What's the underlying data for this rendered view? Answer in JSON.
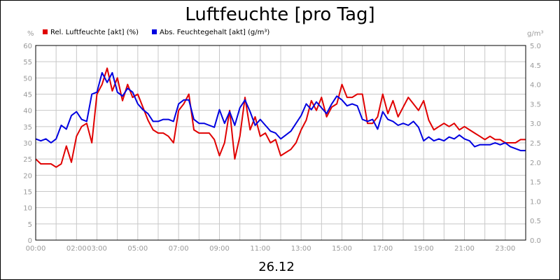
{
  "chart_data": {
    "type": "line",
    "title": "Luftfeuchte [pro Tag]",
    "date_label": "26.12",
    "y_left_unit": "%",
    "y_right_unit": "g/m³",
    "ylim_left": [
      0,
      60
    ],
    "ylim_right": [
      0,
      5
    ],
    "y_left_ticks": [
      "0",
      "5",
      "10",
      "15",
      "20",
      "25",
      "30",
      "35",
      "40",
      "45",
      "50",
      "55",
      "60"
    ],
    "y_right_ticks": [
      "0.0",
      "0.5",
      "1.0",
      "1.5",
      "2.0",
      "2.5",
      "3.0",
      "3.5",
      "4.0",
      "4.5",
      "5.0"
    ],
    "x_tick_labels": [
      {
        "hour": 0,
        "label": "00:00"
      },
      {
        "hour": 2,
        "label": "02:00"
      },
      {
        "hour": 3,
        "label": "03:00"
      },
      {
        "hour": 5,
        "label": "05:00"
      },
      {
        "hour": 7,
        "label": "07:00"
      },
      {
        "hour": 9,
        "label": "09:00"
      },
      {
        "hour": 11,
        "label": "11:00"
      },
      {
        "hour": 13,
        "label": "13:00"
      },
      {
        "hour": 15,
        "label": "15:00"
      },
      {
        "hour": 17,
        "label": "17:00"
      },
      {
        "hour": 19,
        "label": "19:00"
      },
      {
        "hour": 21,
        "label": "21:00"
      },
      {
        "hour": 23,
        "label": "23:00"
      }
    ],
    "grid": true,
    "legend_position": "top-left",
    "series": [
      {
        "name": "Rel. Luftfeuchte [akt] (%)",
        "color": "#e00000",
        "axis": "left",
        "x": [
          0,
          0.25,
          0.5,
          0.75,
          1,
          1.25,
          1.5,
          1.75,
          2,
          2.25,
          2.5,
          2.75,
          3,
          3.25,
          3.5,
          3.75,
          4,
          4.25,
          4.5,
          4.75,
          5,
          5.25,
          5.5,
          5.75,
          6,
          6.25,
          6.5,
          6.75,
          7,
          7.25,
          7.5,
          7.75,
          8,
          8.25,
          8.5,
          8.75,
          9,
          9.25,
          9.5,
          9.75,
          10,
          10.25,
          10.5,
          10.75,
          11,
          11.25,
          11.5,
          11.75,
          12,
          12.25,
          12.5,
          12.75,
          13,
          13.25,
          13.5,
          13.75,
          14,
          14.25,
          14.5,
          14.75,
          15,
          15.25,
          15.5,
          15.75,
          16,
          16.25,
          16.5,
          16.75,
          17,
          17.25,
          17.5,
          17.75,
          18,
          18.25,
          18.5,
          18.75,
          19,
          19.25,
          19.5,
          19.75,
          20,
          20.25,
          20.5,
          20.75,
          21,
          21.25,
          21.5,
          21.75,
          22,
          22.25,
          22.5,
          22.75,
          23,
          23.25,
          23.5,
          23.75,
          24
        ],
        "values": [
          25,
          23.5,
          23.5,
          23.5,
          22.5,
          23.5,
          29,
          24,
          32,
          35,
          36,
          30,
          45,
          48,
          53,
          46,
          50,
          43,
          48,
          44,
          45,
          41,
          37,
          34,
          33,
          33,
          32,
          30,
          40,
          42,
          45,
          34,
          33,
          33,
          33,
          31,
          26,
          30,
          40,
          25,
          32,
          44,
          34,
          38,
          32,
          33,
          30,
          31,
          26,
          27,
          28,
          30,
          34,
          37,
          43,
          40,
          44,
          38,
          41,
          42,
          48,
          44,
          44,
          45,
          45,
          36,
          36,
          38,
          45,
          39,
          43,
          38,
          41,
          44,
          42,
          40,
          43,
          37,
          34,
          35,
          36,
          35,
          36,
          34,
          35,
          34,
          33,
          32,
          31,
          32,
          31,
          31,
          30,
          30,
          30,
          31,
          31
        ]
      },
      {
        "name": "Abs. Feuchtegehalt [akt] (g/m³)",
        "color": "#0000e0",
        "axis": "right",
        "x": [
          0,
          0.25,
          0.5,
          0.75,
          1,
          1.25,
          1.5,
          1.75,
          2,
          2.25,
          2.5,
          2.75,
          3,
          3.25,
          3.5,
          3.75,
          4,
          4.25,
          4.5,
          4.75,
          5,
          5.25,
          5.5,
          5.75,
          6,
          6.25,
          6.5,
          6.75,
          7,
          7.25,
          7.5,
          7.75,
          8,
          8.25,
          8.5,
          8.75,
          9,
          9.25,
          9.5,
          9.75,
          10,
          10.25,
          10.5,
          10.75,
          11,
          11.25,
          11.5,
          11.75,
          12,
          12.25,
          12.5,
          12.75,
          13,
          13.25,
          13.5,
          13.75,
          14,
          14.25,
          14.5,
          14.75,
          15,
          15.25,
          15.5,
          15.75,
          16,
          16.25,
          16.5,
          16.75,
          17,
          17.25,
          17.5,
          17.75,
          18,
          18.25,
          18.5,
          18.75,
          19,
          19.25,
          19.5,
          19.75,
          20,
          20.25,
          20.5,
          20.75,
          21,
          21.25,
          21.5,
          21.75,
          22,
          22.25,
          22.5,
          22.75,
          23,
          23.25,
          23.5,
          23.75,
          24
        ],
        "values": [
          2.6,
          2.55,
          2.6,
          2.5,
          2.6,
          2.95,
          2.85,
          3.2,
          3.3,
          3.1,
          3.05,
          3.75,
          3.8,
          4.3,
          4.05,
          4.3,
          3.8,
          3.7,
          3.9,
          3.8,
          3.5,
          3.35,
          3.25,
          3.05,
          3.05,
          3.1,
          3.1,
          3.05,
          3.5,
          3.6,
          3.6,
          3.1,
          3.0,
          3.0,
          2.95,
          2.9,
          3.35,
          3.0,
          3.3,
          2.95,
          3.4,
          3.6,
          3.3,
          2.95,
          3.1,
          2.95,
          2.8,
          2.75,
          2.6,
          2.7,
          2.8,
          3.0,
          3.2,
          3.5,
          3.35,
          3.55,
          3.4,
          3.25,
          3.5,
          3.7,
          3.6,
          3.45,
          3.5,
          3.45,
          3.1,
          3.05,
          3.1,
          2.85,
          3.3,
          3.1,
          3.05,
          2.95,
          3.0,
          2.95,
          3.05,
          2.9,
          2.55,
          2.65,
          2.55,
          2.6,
          2.55,
          2.65,
          2.6,
          2.7,
          2.6,
          2.55,
          2.4,
          2.45,
          2.45,
          2.45,
          2.5,
          2.45,
          2.5,
          2.4,
          2.35,
          2.3,
          2.3
        ]
      }
    ]
  }
}
